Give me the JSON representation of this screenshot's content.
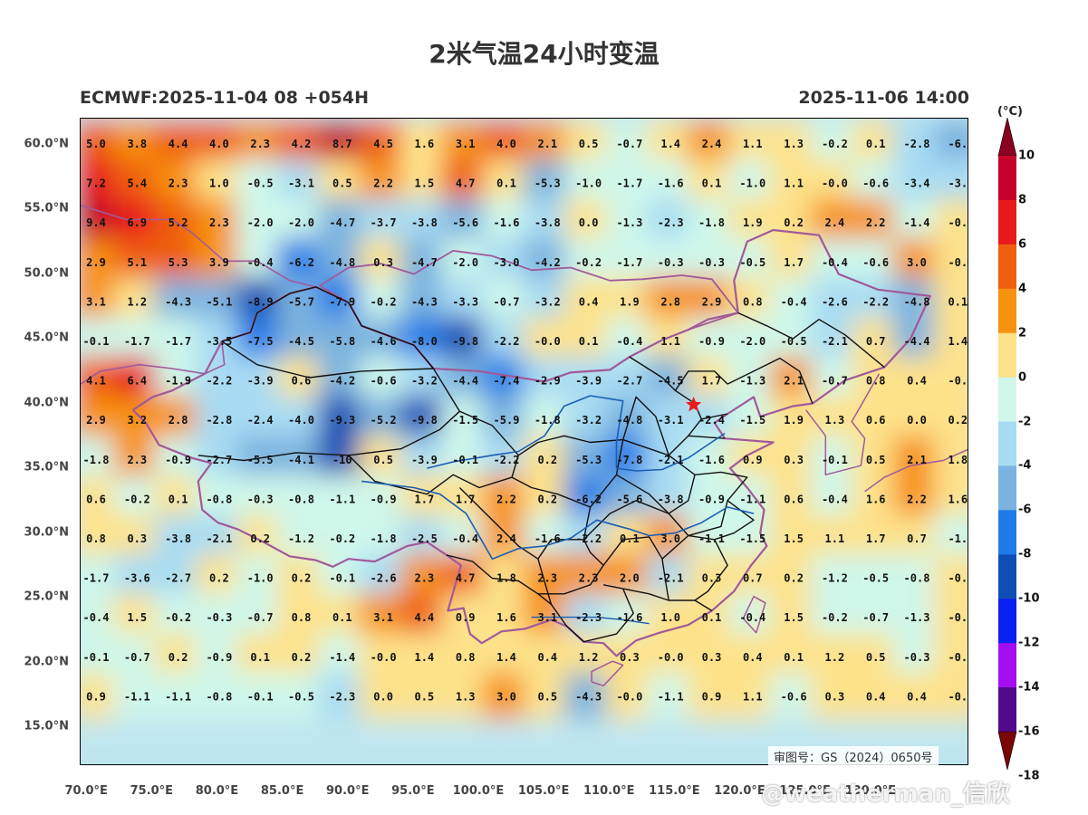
{
  "header": {
    "title": "2米气温24小时变温",
    "run_label": "ECMWF:2025-11-04 08 +054H",
    "valid_label": "2025-11-06 14:00"
  },
  "axes": {
    "lat_labels": [
      "60.0°N",
      "55.0°N",
      "50.0°N",
      "45.0°N",
      "40.0°N",
      "35.0°N",
      "30.0°N",
      "25.0°N",
      "20.0°N",
      "15.0°N"
    ],
    "lon_labels": [
      "70.0°E",
      "75.0°E",
      "80.0°E",
      "85.0°E",
      "90.0°E",
      "95.0°E",
      "100.0°E",
      "105.0°E",
      "110.0°E",
      "115.0°E",
      "120.0°E",
      "125.0°E",
      "130.0°E"
    ]
  },
  "colorbar": {
    "unit": "(°C)",
    "labels": [
      "10",
      "8",
      "6",
      "4",
      "2",
      "0",
      "-2",
      "-4",
      "-6",
      "-8",
      "-10",
      "-12",
      "-14",
      "-16",
      "-18"
    ],
    "colors": [
      "#8b0022",
      "#c4002b",
      "#e8191a",
      "#ef5f0f",
      "#f7920e",
      "#fde28a",
      "#cff7ea",
      "#a8dcf3",
      "#7ab3df",
      "#1f7be8",
      "#0f4fb5",
      "#0a1ff2",
      "#a50ff0",
      "#520a8c",
      "#7a0606"
    ]
  },
  "grid_values": [
    [
      "5.0",
      "3.8",
      "4.4",
      "4.0",
      "2.3",
      "4.2",
      "8.7",
      "4.5",
      "1.6",
      "3.1",
      "4.0",
      "2.1",
      "0.5",
      "-0.7",
      "1.4",
      "2.4",
      "1.1",
      "1.3",
      "-0.2",
      "0.1",
      "-2.8",
      "-6."
    ],
    [
      "7.2",
      "5.4",
      "2.3",
      "1.0",
      "-0.5",
      "-3.1",
      "0.5",
      "2.2",
      "1.5",
      "4.7",
      "0.1",
      "-5.3",
      "-1.0",
      "-1.7",
      "-1.6",
      "0.1",
      "-1.0",
      "1.1",
      "-0.0",
      "-0.6",
      "-3.4",
      "-3."
    ],
    [
      "9.4",
      "6.9",
      "5.2",
      "2.3",
      "-2.0",
      "-2.0",
      "-4.7",
      "-3.7",
      "-3.8",
      "-5.6",
      "-1.6",
      "-3.8",
      "0.0",
      "-1.3",
      "-2.3",
      "-1.8",
      "1.9",
      "0.2",
      "2.4",
      "2.2",
      "-1.4",
      "-0."
    ],
    [
      "2.9",
      "5.1",
      "5.3",
      "3.9",
      "-0.4",
      "-6.2",
      "-4.8",
      "0.3",
      "-4.7",
      "-2.0",
      "-3.0",
      "-4.2",
      "-0.2",
      "-1.7",
      "-0.3",
      "-0.3",
      "-0.5",
      "1.7",
      "-0.4",
      "-0.6",
      "3.0",
      "-0."
    ],
    [
      "3.1",
      "1.2",
      "-4.3",
      "-5.1",
      "-8.9",
      "-5.7",
      "-7.9",
      "-0.2",
      "-4.3",
      "-3.3",
      "-0.7",
      "-3.2",
      "0.4",
      "1.9",
      "2.8",
      "2.9",
      "0.8",
      "-0.4",
      "-2.6",
      "-2.2",
      "-4.8",
      "0.1"
    ],
    [
      "-0.1",
      "-1.7",
      "-1.7",
      "-3.5",
      "-7.5",
      "-4.5",
      "-5.8",
      "-4.6",
      "-8.0",
      "-9.8",
      "-2.2",
      "-0.0",
      "0.1",
      "-0.4",
      "1.1",
      "-0.9",
      "-2.0",
      "-0.5",
      "-2.1",
      "0.7",
      "-4.4",
      "1.4"
    ],
    [
      "4.1",
      "6.4",
      "-1.9",
      "-2.2",
      "-3.9",
      "0.6",
      "-4.2",
      "-0.6",
      "-3.2",
      "-4.4",
      "-7.4",
      "-2.9",
      "-3.9",
      "-2.7",
      "-4.5",
      "1.7",
      "-1.3",
      "2.1",
      "-0.7",
      "0.8",
      "0.4",
      "-0."
    ],
    [
      "2.9",
      "3.2",
      "2.8",
      "-2.8",
      "-2.4",
      "-4.0",
      "-9.3",
      "-5.2",
      "-9.8",
      "-1.5",
      "-5.9",
      "-1.8",
      "-3.2",
      "-4.8",
      "-3.1",
      "-2.4",
      "-1.5",
      "1.9",
      "1.3",
      "0.6",
      "0.0",
      "0.2"
    ],
    [
      "-1.8",
      "2.3",
      "-0.9",
      "-2.7",
      "-5.5",
      "-4.1",
      "-10",
      "0.5",
      "-3.9",
      "-0.1",
      "-2.2",
      "0.2",
      "-5.3",
      "-7.8",
      "-2.1",
      "-1.6",
      "0.9",
      "0.3",
      "-0.1",
      "0.5",
      "2.1",
      "1.8"
    ],
    [
      "0.6",
      "-0.2",
      "0.1",
      "-0.8",
      "-0.3",
      "-0.8",
      "-1.1",
      "-0.9",
      "1.7",
      "1.7",
      "2.2",
      "0.2",
      "-6.2",
      "-5.6",
      "-3.8",
      "-0.9",
      "-1.1",
      "0.6",
      "-0.4",
      "1.6",
      "2.2",
      "1.6"
    ],
    [
      "0.8",
      "0.3",
      "-3.8",
      "-2.1",
      "0.2",
      "-1.2",
      "-0.2",
      "-1.8",
      "-2.5",
      "-0.4",
      "2.4",
      "-1.6",
      "-2.2",
      "0.1",
      "3.0",
      "-1.1",
      "-1.5",
      "1.5",
      "1.1",
      "1.7",
      "0.7",
      "-1."
    ],
    [
      "-1.7",
      "-3.6",
      "-2.7",
      "0.2",
      "-1.0",
      "0.2",
      "-0.1",
      "-2.6",
      "2.3",
      "4.7",
      "1.8",
      "2.3",
      "2.3",
      "2.0",
      "-2.1",
      "0.3",
      "0.7",
      "0.2",
      "-1.2",
      "-0.5",
      "-0.8",
      "-0."
    ],
    [
      "-0.4",
      "1.5",
      "-0.2",
      "-0.3",
      "-0.7",
      "0.8",
      "0.1",
      "3.1",
      "4.4",
      "0.9",
      "1.6",
      "3.1",
      "-2.3",
      "-1.6",
      "1.0",
      "0.1",
      "-0.4",
      "1.5",
      "-0.2",
      "-0.7",
      "-1.3",
      "-0."
    ],
    [
      "-0.1",
      "-0.7",
      "0.2",
      "-0.9",
      "0.1",
      "0.2",
      "-1.4",
      "-0.0",
      "1.4",
      "0.8",
      "1.4",
      "0.4",
      "1.2",
      "0.3",
      "-0.0",
      "0.3",
      "0.4",
      "0.1",
      "1.2",
      "0.5",
      "-0.3",
      "-0."
    ],
    [
      "0.9",
      "-1.1",
      "-1.1",
      "-0.8",
      "-0.1",
      "-0.5",
      "-2.3",
      "0.0",
      "0.5",
      "1.3",
      "3.0",
      "0.5",
      "-4.3",
      "-0.0",
      "-1.1",
      "0.9",
      "1.1",
      "-0.6",
      "0.3",
      "0.4",
      "0.4",
      "-0."
    ]
  ],
  "approval": "审图号：GS（2024）0650号",
  "watermark": "@weatherman_信欣",
  "marker": {
    "name": "star",
    "lon": 116.4,
    "lat": 39.9,
    "color": "#e8191a"
  }
}
